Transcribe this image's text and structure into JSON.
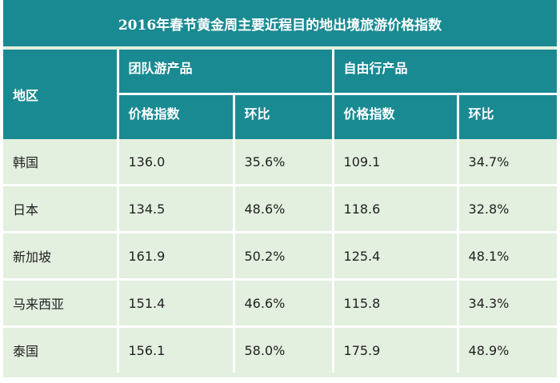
{
  "title": "2016年春节黄金周主要近程目的地出境旅游价格指数",
  "header": {
    "region": "地区",
    "group_product": "团队游产品",
    "free_product": "自由行产品",
    "price_index": "价格指数",
    "ratio": "环比"
  },
  "rows": [
    {
      "region": "韩国",
      "group_index": "136.0",
      "group_ratio": "35.6%",
      "free_index": "109.1",
      "free_ratio": "34.7%"
    },
    {
      "region": "日本",
      "group_index": "134.5",
      "group_ratio": "48.6%",
      "free_index": "118.6",
      "free_ratio": "32.8%"
    },
    {
      "region": "新加坡",
      "group_index": "161.9",
      "group_ratio": "50.2%",
      "free_index": "125.4",
      "free_ratio": "48.1%"
    },
    {
      "region": "马来西亚",
      "group_index": "151.4",
      "group_ratio": "46.6%",
      "free_index": "115.8",
      "free_ratio": "34.3%"
    },
    {
      "region": "泰国",
      "group_index": "156.1",
      "group_ratio": "58.0%",
      "free_index": "175.9",
      "free_ratio": "48.9%"
    }
  ],
  "colors": {
    "header_bg": "#1a8a92",
    "body_bg": "#e3efdf",
    "separator": "#ffffff"
  }
}
